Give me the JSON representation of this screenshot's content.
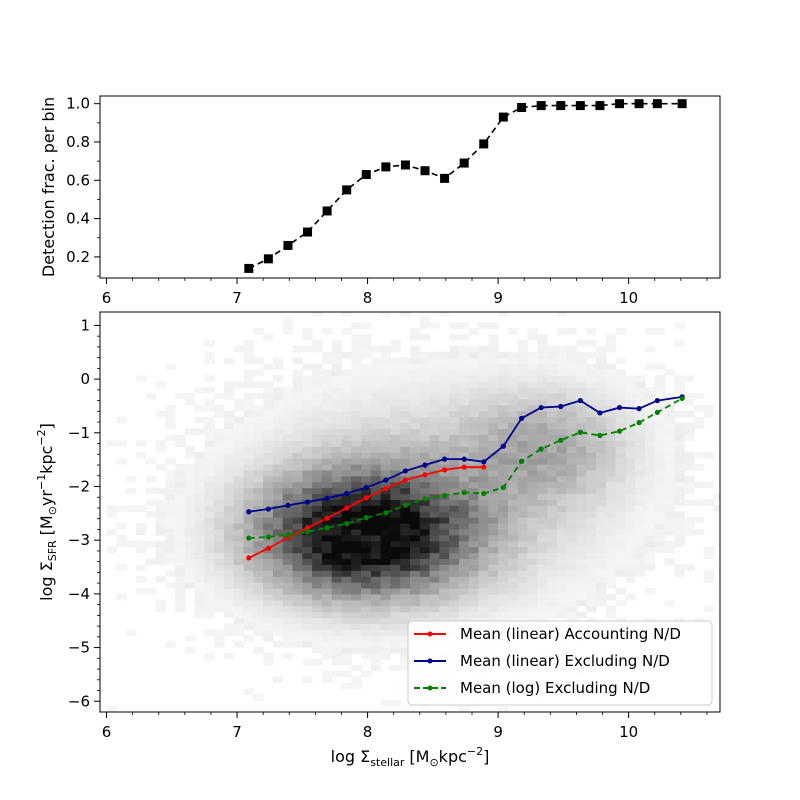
{
  "chart_data": [
    {
      "type": "line",
      "ylabel": "Detection frac. per bin",
      "xlim": [
        5.95,
        10.7
      ],
      "ylim": [
        0.09,
        1.04
      ],
      "x_ticks": [
        6,
        7,
        8,
        9,
        10
      ],
      "y_ticks": [
        0.2,
        0.4,
        0.6,
        0.8,
        1.0
      ],
      "x_tick_labels": [
        "6",
        "7",
        "8",
        "9",
        "10"
      ],
      "y_tick_labels": [
        "0.2",
        "0.4",
        "0.6",
        "0.8",
        "1.0"
      ],
      "series": [
        {
          "style": "dashed",
          "marker": "square",
          "color": "#000000",
          "x": [
            7.09,
            7.24,
            7.39,
            7.54,
            7.69,
            7.84,
            7.99,
            8.14,
            8.29,
            8.44,
            8.59,
            8.74,
            8.89,
            9.04,
            9.18,
            9.33,
            9.48,
            9.63,
            9.78,
            9.93,
            10.08,
            10.22,
            10.41
          ],
          "y": [
            0.14,
            0.19,
            0.26,
            0.33,
            0.44,
            0.55,
            0.63,
            0.67,
            0.68,
            0.65,
            0.61,
            0.69,
            0.79,
            0.93,
            0.98,
            0.99,
            0.99,
            0.99,
            0.99,
            1.0,
            1.0,
            1.0,
            1.0
          ]
        }
      ]
    },
    {
      "type": "line",
      "background": "heatmap",
      "xlabel_main": "log Σ",
      "xlabel_sub": "stellar",
      "xlabel_unit_pre": "[M",
      "xlabel_unit_sun": "⊙",
      "xlabel_unit_mid": "kpc",
      "xlabel_unit_exp": "−2",
      "xlabel_unit_post": "]",
      "ylabel_main": "log Σ",
      "ylabel_sub": "SFR",
      "ylabel_unit_pre": "[M",
      "ylabel_unit_sun": "⊙",
      "ylabel_unit_yr": "yr",
      "ylabel_unit_exp1": "−1",
      "ylabel_unit_mid": "kpc",
      "ylabel_unit_exp2": "−2",
      "ylabel_unit_post": "]",
      "xlim": [
        5.95,
        10.7
      ],
      "ylim": [
        -6.2,
        1.25
      ],
      "x_ticks": [
        6,
        7,
        8,
        9,
        10
      ],
      "y_ticks": [
        1,
        0,
        -1,
        -2,
        -3,
        -4,
        -5,
        -6
      ],
      "x_tick_labels": [
        "6",
        "7",
        "8",
        "9",
        "10"
      ],
      "y_tick_labels": [
        "1",
        "0",
        "−1",
        "−2",
        "−3",
        "−4",
        "−5",
        "−6"
      ],
      "legend_position": "lower-right",
      "series": [
        {
          "name": "Mean (linear) Accounting N/D",
          "color": "#ff0000",
          "style": "solid",
          "marker": "dot",
          "x": [
            7.09,
            7.24,
            7.39,
            7.54,
            7.69,
            7.84,
            7.99,
            8.14,
            8.29,
            8.44,
            8.59,
            8.74,
            8.89
          ],
          "y": [
            -3.33,
            -3.15,
            -2.95,
            -2.77,
            -2.59,
            -2.4,
            -2.21,
            -2.04,
            -1.88,
            -1.78,
            -1.69,
            -1.64,
            -1.64
          ]
        },
        {
          "name": "Mean (linear) Excluding N/D",
          "color": "#00008b",
          "style": "solid",
          "marker": "dot",
          "x": [
            7.09,
            7.24,
            7.39,
            7.54,
            7.69,
            7.84,
            7.99,
            8.14,
            8.29,
            8.44,
            8.59,
            8.74,
            8.89,
            9.04,
            9.18,
            9.33,
            9.48,
            9.63,
            9.78,
            9.93,
            10.08,
            10.22,
            10.41
          ],
          "y": [
            -2.47,
            -2.42,
            -2.35,
            -2.29,
            -2.22,
            -2.13,
            -2.02,
            -1.88,
            -1.71,
            -1.6,
            -1.49,
            -1.49,
            -1.54,
            -1.25,
            -0.73,
            -0.53,
            -0.51,
            -0.4,
            -0.63,
            -0.53,
            -0.55,
            -0.4,
            -0.33
          ]
        },
        {
          "name": "Mean (log) Excluding N/D",
          "color": "#008000",
          "style": "dashed",
          "marker": "dot",
          "x": [
            7.09,
            7.24,
            7.39,
            7.54,
            7.69,
            7.84,
            7.99,
            8.14,
            8.29,
            8.44,
            8.59,
            8.74,
            8.89,
            9.04,
            9.18,
            9.33,
            9.48,
            9.63,
            9.78,
            9.93,
            10.08,
            10.22,
            10.41
          ],
          "y": [
            -2.96,
            -2.94,
            -2.9,
            -2.84,
            -2.77,
            -2.69,
            -2.58,
            -2.49,
            -2.35,
            -2.23,
            -2.17,
            -2.11,
            -2.13,
            -2.02,
            -1.53,
            -1.3,
            -1.14,
            -0.99,
            -1.05,
            -0.97,
            -0.81,
            -0.62,
            -0.36
          ]
        }
      ]
    }
  ]
}
